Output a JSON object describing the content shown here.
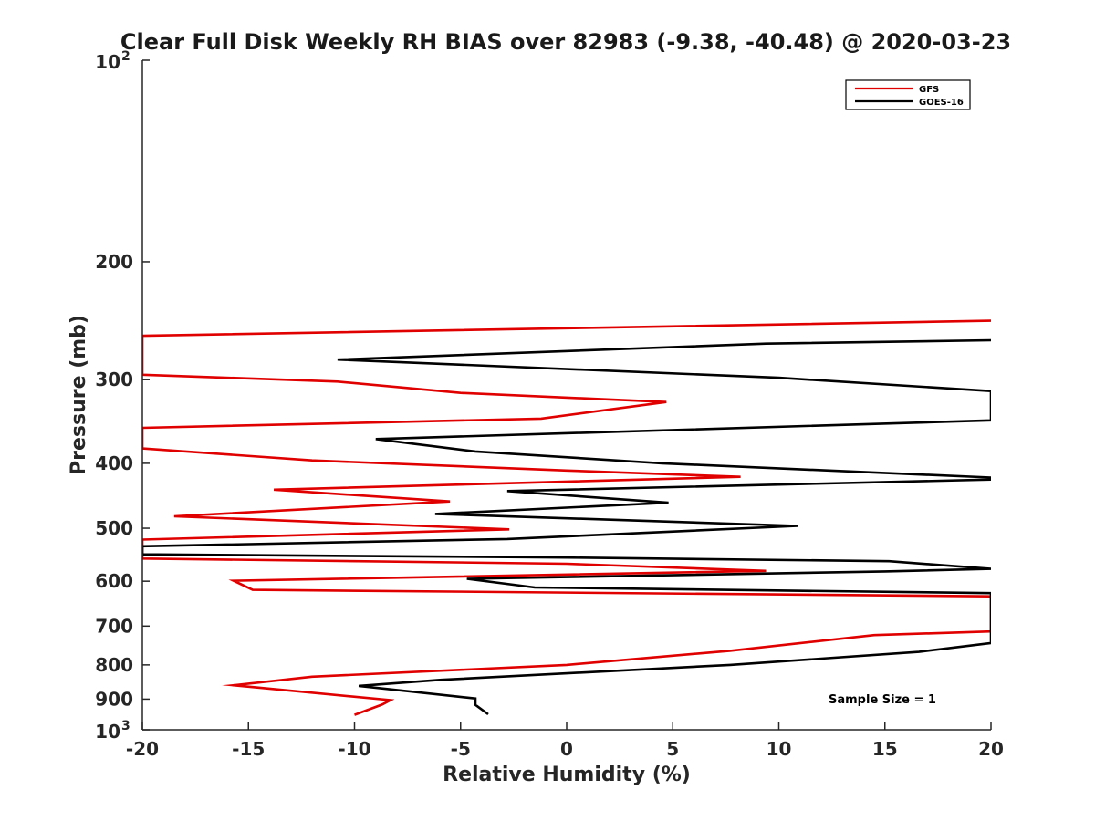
{
  "chart_data": {
    "type": "line",
    "title": "Clear Full Disk Weekly RH BIAS over 82983 (-9.38, -40.48) @ 2020-03-23",
    "xlabel": "Relative Humidity (%)",
    "ylabel": "Pressure (mb)",
    "xlim": [
      -20,
      20
    ],
    "ylim": [
      100,
      1000
    ],
    "yscale": "log",
    "y_reversed": true,
    "x_ticks": [
      "-20",
      "-15",
      "-10",
      "-5",
      "0",
      "5",
      "10",
      "15",
      "20"
    ],
    "y_ticks": [
      {
        "value": 100,
        "base": "10",
        "exp": "2"
      },
      {
        "value": 200,
        "label": "200"
      },
      {
        "value": 300,
        "label": "300"
      },
      {
        "value": 400,
        "label": "400"
      },
      {
        "value": 500,
        "label": "500"
      },
      {
        "value": 600,
        "label": "600"
      },
      {
        "value": 700,
        "label": "700"
      },
      {
        "value": 800,
        "label": "800"
      },
      {
        "value": 900,
        "label": "900"
      },
      {
        "value": 1000,
        "base": "10",
        "exp": "3"
      }
    ],
    "legend": {
      "position": "top-right"
    },
    "annotation": "Sample Size = 1",
    "series": [
      {
        "name": "GFS",
        "color": "#e00000",
        "points": [
          [
            20,
            245
          ],
          [
            -20,
            258
          ],
          [
            -20,
            295
          ],
          [
            -10.8,
            302
          ],
          [
            -5,
            314
          ],
          [
            4.7,
            324
          ],
          [
            -1.2,
            343
          ],
          [
            -20,
            354
          ],
          [
            -20,
            380
          ],
          [
            -12,
            396
          ],
          [
            0,
            410
          ],
          [
            8.2,
            419
          ],
          [
            -13.8,
            438
          ],
          [
            -5.5,
            456
          ],
          [
            -18.5,
            480
          ],
          [
            -2.7,
            502
          ],
          [
            -20,
            520
          ],
          [
            -20,
            555
          ],
          [
            0,
            565
          ],
          [
            9.4,
            579
          ],
          [
            -15.7,
            599
          ],
          [
            -14.8,
            618
          ],
          [
            20,
            632
          ],
          [
            20,
            713
          ],
          [
            14.5,
            722
          ],
          [
            7.7,
            762
          ],
          [
            0,
            800
          ],
          [
            -12,
            833
          ],
          [
            -15.7,
            858
          ],
          [
            -8.3,
            903
          ],
          [
            -8.7,
            917
          ],
          [
            -10,
            950
          ]
        ]
      },
      {
        "name": "GOES-16",
        "color": "#000000",
        "points": [
          [
            20,
            262
          ],
          [
            9.4,
            265
          ],
          [
            -10.8,
            280
          ],
          [
            10,
            298
          ],
          [
            20,
            312
          ],
          [
            20,
            345
          ],
          [
            -9,
            368
          ],
          [
            -4.3,
            384
          ],
          [
            4.5,
            400
          ],
          [
            20,
            420
          ],
          [
            20,
            423
          ],
          [
            -2.8,
            440
          ],
          [
            4.8,
            458
          ],
          [
            -6.2,
            476
          ],
          [
            10.9,
            496
          ],
          [
            -2.8,
            519
          ],
          [
            -20,
            532
          ],
          [
            -20,
            547
          ],
          [
            0,
            553
          ],
          [
            15.2,
            560
          ],
          [
            20,
            575
          ],
          [
            15,
            580
          ],
          [
            -4.7,
            595
          ],
          [
            -1.5,
            613
          ],
          [
            20,
            625
          ],
          [
            20,
            742
          ],
          [
            16.6,
            765
          ],
          [
            7.7,
            800
          ],
          [
            -5.9,
            842
          ],
          [
            -9.8,
            860
          ],
          [
            -4.3,
            898
          ],
          [
            -4.3,
            918
          ],
          [
            -3.7,
            948
          ]
        ]
      }
    ]
  }
}
